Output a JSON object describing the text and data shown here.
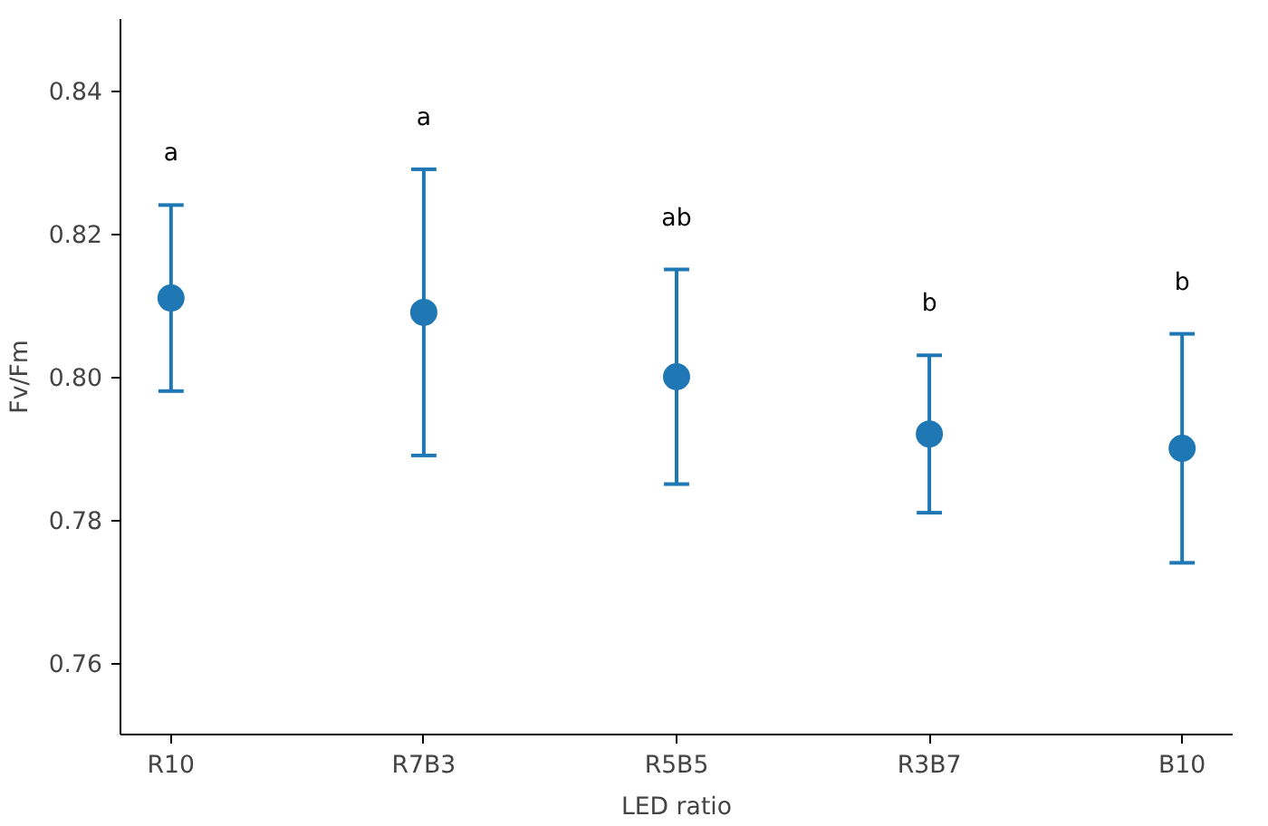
{
  "chart_data": {
    "type": "scatter",
    "xlabel": "LED ratio",
    "ylabel": "Fv/Fm",
    "categories": [
      "R10",
      "R7B3",
      "R5B5",
      "R3B7",
      "B10"
    ],
    "values": [
      0.811,
      0.809,
      0.8,
      0.792,
      0.79
    ],
    "errors": [
      [
        0.798,
        0.824
      ],
      [
        0.789,
        0.829
      ],
      [
        0.785,
        0.815
      ],
      [
        0.781,
        0.803
      ],
      [
        0.774,
        0.806
      ]
    ],
    "color": "#1f77b4",
    "marker": "circle",
    "grid": false,
    "ylim": [
      0.75,
      0.85
    ],
    "yticks": [
      0.76,
      0.78,
      {
        "value": 0.8,
        "label": "0.80"
      },
      0.82,
      0.84
    ],
    "annotations": [
      "a",
      "a",
      "ab",
      "b",
      "b"
    ]
  }
}
